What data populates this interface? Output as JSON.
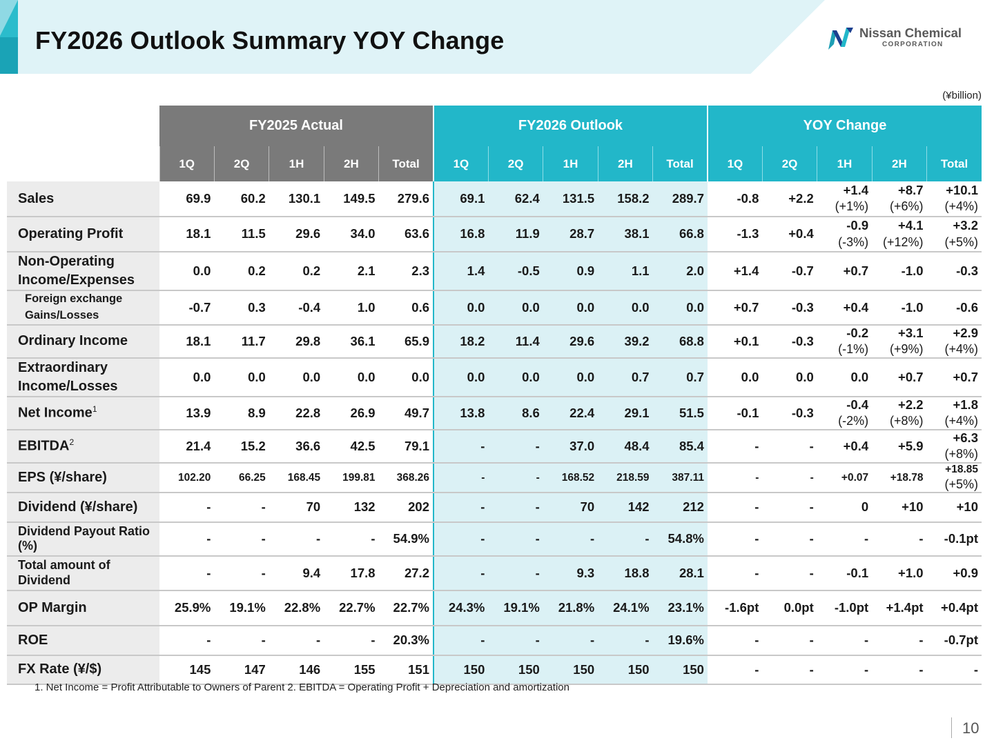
{
  "title": "FY2026 Outlook Summary YOY Change",
  "logo": {
    "name": "Nissan Chemical",
    "sub": "CORPORATION"
  },
  "unit": "(¥billion)",
  "colors": {
    "accent": "#22b7c9",
    "actual_header": "#7a7a7a",
    "outlook_cell": "#dbf1f5",
    "title_band": "#dff3f7"
  },
  "groups": [
    "FY2025 Actual",
    "FY2026 Outlook",
    "YOY Change"
  ],
  "quarters": [
    "1Q",
    "2Q",
    "1H",
    "2H",
    "Total"
  ],
  "rows": [
    {
      "label": "Sales",
      "sup": "",
      "actual": [
        "69.9",
        "60.2",
        "130.1",
        "149.5",
        "279.6"
      ],
      "outlook": [
        "69.1",
        "62.4",
        "131.5",
        "158.2",
        "289.7"
      ],
      "yoy": [
        "-0.8",
        "+2.2",
        "+1.4",
        "+8.7",
        "+10.1"
      ],
      "yoy_pct": [
        "",
        "",
        "(+1%)",
        "(+6%)",
        "(+4%)"
      ]
    },
    {
      "label": "Operating Profit",
      "sup": "",
      "actual": [
        "18.1",
        "11.5",
        "29.6",
        "34.0",
        "63.6"
      ],
      "outlook": [
        "16.8",
        "11.9",
        "28.7",
        "38.1",
        "66.8"
      ],
      "yoy": [
        "-1.3",
        "+0.4",
        "-0.9",
        "+4.1",
        "+3.2"
      ],
      "yoy_pct": [
        "",
        "",
        "(-3%)",
        "(+12%)",
        "(+5%)"
      ]
    },
    {
      "label": "Non-Operating Income/Expenses",
      "sup": "",
      "actual": [
        "0.0",
        "0.2",
        "0.2",
        "2.1",
        "2.3"
      ],
      "outlook": [
        "1.4",
        "-0.5",
        "0.9",
        "1.1",
        "2.0"
      ],
      "yoy": [
        "+1.4",
        "-0.7",
        "+0.7",
        "-1.0",
        "-0.3"
      ],
      "yoy_pct": [
        "",
        "",
        "",
        "",
        ""
      ]
    },
    {
      "label": "Foreign exchange Gains/Losses",
      "sup": "",
      "actual": [
        "-0.7",
        "0.3",
        "-0.4",
        "1.0",
        "0.6"
      ],
      "outlook": [
        "0.0",
        "0.0",
        "0.0",
        "0.0",
        "0.0"
      ],
      "yoy": [
        "+0.7",
        "-0.3",
        "+0.4",
        "-1.0",
        "-0.6"
      ],
      "yoy_pct": [
        "",
        "",
        "",
        "",
        ""
      ]
    },
    {
      "label": "Ordinary Income",
      "sup": "",
      "actual": [
        "18.1",
        "11.7",
        "29.8",
        "36.1",
        "65.9"
      ],
      "outlook": [
        "18.2",
        "11.4",
        "29.6",
        "39.2",
        "68.8"
      ],
      "yoy": [
        "+0.1",
        "-0.3",
        "-0.2",
        "+3.1",
        "+2.9"
      ],
      "yoy_pct": [
        "",
        "",
        "(-1%)",
        "(+9%)",
        "(+4%)"
      ]
    },
    {
      "label": "Extraordinary Income/Losses",
      "sup": "",
      "actual": [
        "0.0",
        "0.0",
        "0.0",
        "0.0",
        "0.0"
      ],
      "outlook": [
        "0.0",
        "0.0",
        "0.0",
        "0.7",
        "0.7"
      ],
      "yoy": [
        "0.0",
        "0.0",
        "0.0",
        "+0.7",
        "+0.7"
      ],
      "yoy_pct": [
        "",
        "",
        "",
        "",
        ""
      ]
    },
    {
      "label": "Net Income",
      "sup": "1",
      "actual": [
        "13.9",
        "8.9",
        "22.8",
        "26.9",
        "49.7"
      ],
      "outlook": [
        "13.8",
        "8.6",
        "22.4",
        "29.1",
        "51.5"
      ],
      "yoy": [
        "-0.1",
        "-0.3",
        "-0.4",
        "+2.2",
        "+1.8"
      ],
      "yoy_pct": [
        "",
        "",
        "(-2%)",
        "(+8%)",
        "(+4%)"
      ]
    },
    {
      "label": "EBITDA",
      "sup": "2",
      "actual": [
        "21.4",
        "15.2",
        "36.6",
        "42.5",
        "79.1"
      ],
      "outlook": [
        "-",
        "-",
        "37.0",
        "48.4",
        "85.4"
      ],
      "yoy": [
        "-",
        "-",
        "+0.4",
        "+5.9",
        "+6.3"
      ],
      "yoy_pct": [
        "",
        "",
        "",
        "",
        "(+8%)"
      ]
    },
    {
      "label": "EPS (¥/share)",
      "sup": "",
      "actual": [
        "102.20",
        "66.25",
        "168.45",
        "199.81",
        "368.26"
      ],
      "outlook": [
        "-",
        "-",
        "168.52",
        "218.59",
        "387.11"
      ],
      "yoy": [
        "-",
        "-",
        "+0.07",
        "+18.78",
        "+18.85"
      ],
      "yoy_pct": [
        "",
        "",
        "",
        "",
        "(+5%)"
      ]
    },
    {
      "label": "Dividend (¥/share)",
      "sup": "",
      "actual": [
        "-",
        "-",
        "70",
        "132",
        "202"
      ],
      "outlook": [
        "-",
        "-",
        "70",
        "142",
        "212"
      ],
      "yoy": [
        "-",
        "-",
        "0",
        "+10",
        "+10"
      ],
      "yoy_pct": [
        "",
        "",
        "",
        "",
        ""
      ]
    },
    {
      "label": "Dividend Payout Ratio (%)",
      "sup": "",
      "actual": [
        "-",
        "-",
        "-",
        "-",
        "54.9%"
      ],
      "outlook": [
        "-",
        "-",
        "-",
        "-",
        "54.8%"
      ],
      "yoy": [
        "-",
        "-",
        "-",
        "-",
        "-0.1pt"
      ],
      "yoy_pct": [
        "",
        "",
        "",
        "",
        ""
      ]
    },
    {
      "label": "Total amount of Dividend",
      "sup": "",
      "actual": [
        "-",
        "-",
        "9.4",
        "17.8",
        "27.2"
      ],
      "outlook": [
        "-",
        "-",
        "9.3",
        "18.8",
        "28.1"
      ],
      "yoy": [
        "-",
        "-",
        "-0.1",
        "+1.0",
        "+0.9"
      ],
      "yoy_pct": [
        "",
        "",
        "",
        "",
        ""
      ]
    },
    {
      "label": "OP Margin",
      "sup": "",
      "actual": [
        "25.9%",
        "19.1%",
        "22.8%",
        "22.7%",
        "22.7%"
      ],
      "outlook": [
        "24.3%",
        "19.1%",
        "21.8%",
        "24.1%",
        "23.1%"
      ],
      "yoy": [
        "-1.6pt",
        "0.0pt",
        "-1.0pt",
        "+1.4pt",
        "+0.4pt"
      ],
      "yoy_pct": [
        "",
        "",
        "",
        "",
        ""
      ]
    },
    {
      "label": "ROE",
      "sup": "",
      "actual": [
        "-",
        "-",
        "-",
        "-",
        "20.3%"
      ],
      "outlook": [
        "-",
        "-",
        "-",
        "-",
        "19.6%"
      ],
      "yoy": [
        "-",
        "-",
        "-",
        "-",
        "-0.7pt"
      ],
      "yoy_pct": [
        "",
        "",
        "",
        "",
        ""
      ]
    },
    {
      "label": "FX Rate (¥/$)",
      "sup": "",
      "actual": [
        "145",
        "147",
        "146",
        "155",
        "151"
      ],
      "outlook": [
        "150",
        "150",
        "150",
        "150",
        "150"
      ],
      "yoy": [
        "-",
        "-",
        "-",
        "-",
        "-"
      ],
      "yoy_pct": [
        "",
        "",
        "",
        "",
        ""
      ]
    }
  ],
  "footnote": "1. Net Income = Profit Attributable to Owners of Parent   2. EBITDA = Operating Profit + Depreciation and amortization",
  "page_number": "10"
}
